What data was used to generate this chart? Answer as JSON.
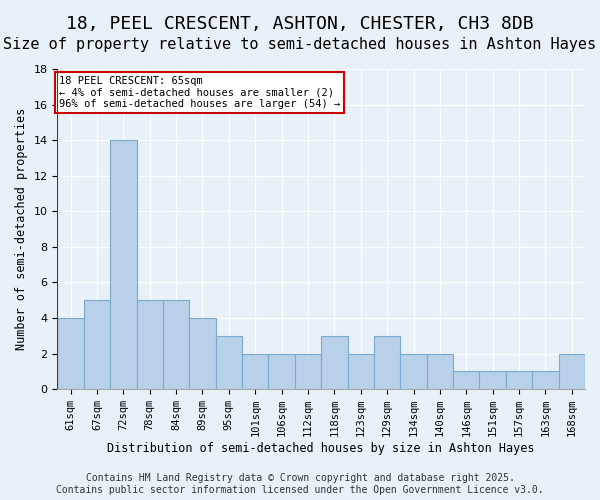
{
  "title": "18, PEEL CRESCENT, ASHTON, CHESTER, CH3 8DB",
  "subtitle": "Size of property relative to semi-detached houses in Ashton Hayes",
  "xlabel": "Distribution of semi-detached houses by size in Ashton Hayes",
  "ylabel": "Number of semi-detached properties",
  "categories": [
    "61sqm",
    "67sqm",
    "72sqm",
    "78sqm",
    "84sqm",
    "89sqm",
    "95sqm",
    "101sqm",
    "106sqm",
    "112sqm",
    "118sqm",
    "123sqm",
    "129sqm",
    "134sqm",
    "140sqm",
    "146sqm",
    "151sqm",
    "157sqm",
    "163sqm",
    "168sqm"
  ],
  "values": [
    4,
    5,
    14,
    5,
    5,
    4,
    3,
    2,
    2,
    2,
    3,
    2,
    3,
    2,
    2,
    1,
    1,
    1,
    1,
    2
  ],
  "bar_color": "#b8d0e8",
  "bar_edge_color": "#7aaace",
  "background_color": "#e8f0f8",
  "grid_color": "#ffffff",
  "vline_color": "#cc0000",
  "annotation_text": "18 PEEL CRESCENT: 65sqm\n← 4% of semi-detached houses are smaller (2)\n96% of semi-detached houses are larger (54) →",
  "annotation_box_color": "#ffffff",
  "annotation_box_edge": "#cc0000",
  "footer": "Contains HM Land Registry data © Crown copyright and database right 2025.\nContains public sector information licensed under the Open Government Licence v3.0.",
  "ylim": [
    0,
    18
  ],
  "yticks": [
    0,
    2,
    4,
    6,
    8,
    10,
    12,
    14,
    16,
    18
  ],
  "title_fontsize": 13,
  "subtitle_fontsize": 11,
  "label_fontsize": 8.5,
  "tick_fontsize": 7.5,
  "footer_fontsize": 7
}
